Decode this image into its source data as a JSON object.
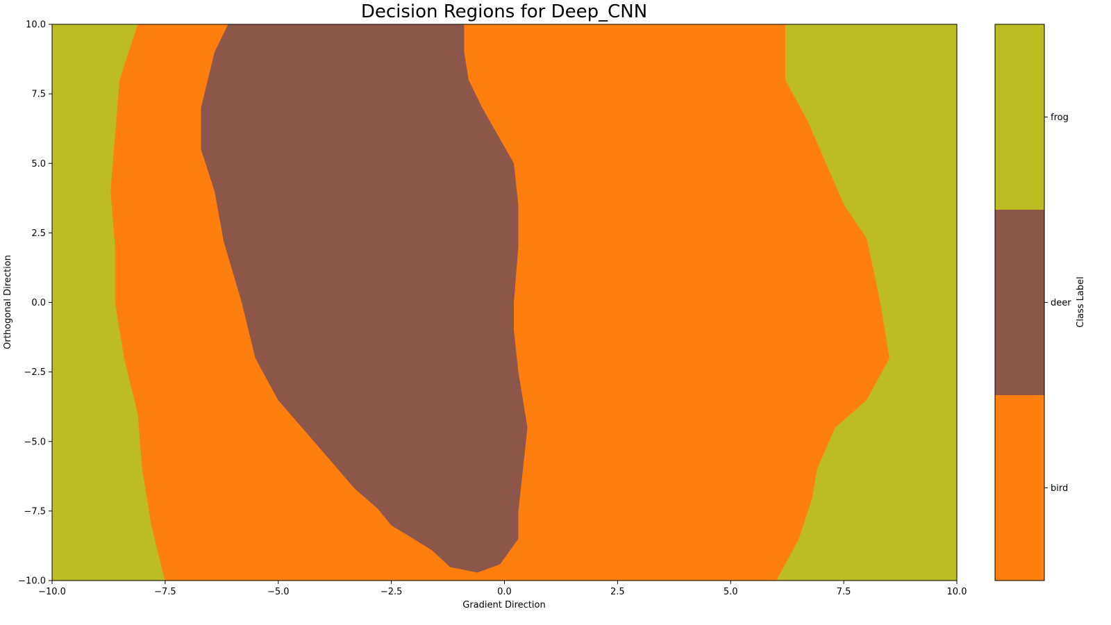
{
  "chart_data": {
    "type": "heatmap",
    "title": "Decision Regions for Deep_CNN",
    "xlabel": "Gradient Direction",
    "ylabel": "Orthogonal Direction",
    "xlim": [
      -10,
      10
    ],
    "ylim": [
      -10,
      10
    ],
    "x_ticks": [
      -10,
      -7.5,
      -5,
      -2.5,
      0,
      2.5,
      5,
      7.5,
      10
    ],
    "y_ticks": [
      -10,
      -7.5,
      -5,
      -2.5,
      0,
      2.5,
      5,
      7.5,
      10
    ],
    "x_tick_labels": [
      "−10.0",
      "−7.5",
      "−5.0",
      "−2.5",
      "0.0",
      "2.5",
      "5.0",
      "7.5",
      "10.0"
    ],
    "y_tick_labels": [
      "−10.0",
      "−7.5",
      "−5.0",
      "−2.5",
      "0.0",
      "2.5",
      "5.0",
      "7.5",
      "10.0"
    ],
    "grid": false,
    "classes": [
      {
        "name": "frog",
        "color": "#bcbd22"
      },
      {
        "name": "bird",
        "color": "#ff7f0e"
      },
      {
        "name": "deer",
        "color": "#8c564b"
      }
    ],
    "background_class": "frog",
    "regions": [
      {
        "class": "bird",
        "boundary": [
          [
            -8.1,
            10
          ],
          [
            -6.1,
            10
          ],
          [
            -6.4,
            9
          ],
          [
            -6.7,
            7
          ],
          [
            -6.7,
            5.5
          ],
          [
            -6.4,
            4
          ],
          [
            -6.2,
            2.2
          ],
          [
            -5.8,
            0
          ],
          [
            -5.5,
            -2
          ],
          [
            -5.0,
            -3.5
          ],
          [
            -4.2,
            -5
          ],
          [
            -3.3,
            -6.7
          ],
          [
            -2.8,
            -7.4
          ],
          [
            -2.5,
            -8
          ],
          [
            -1.6,
            -8.9
          ],
          [
            -1.2,
            -9.5
          ],
          [
            -0.6,
            -9.7
          ],
          [
            -0.1,
            -9.4
          ],
          [
            0.3,
            -8.5
          ],
          [
            0.3,
            -7.5
          ],
          [
            0.4,
            -6
          ],
          [
            0.5,
            -4.5
          ],
          [
            0.3,
            -2.5
          ],
          [
            0.2,
            -1
          ],
          [
            0.2,
            0
          ],
          [
            0.3,
            2
          ],
          [
            0.3,
            3.5
          ],
          [
            0.2,
            5
          ],
          [
            -0.5,
            7
          ],
          [
            -0.8,
            8
          ],
          [
            -0.9,
            9
          ],
          [
            -0.9,
            10
          ],
          [
            6.2,
            10
          ],
          [
            6.2,
            8
          ],
          [
            6.7,
            6.5
          ],
          [
            7.5,
            3.5
          ],
          [
            8.0,
            2.3
          ],
          [
            8.3,
            0
          ],
          [
            8.4,
            -1
          ],
          [
            8.5,
            -2
          ],
          [
            8.0,
            -3.5
          ],
          [
            7.3,
            -4.5
          ],
          [
            6.9,
            -6
          ],
          [
            6.8,
            -7
          ],
          [
            6.5,
            -8.5
          ],
          [
            6.0,
            -10
          ],
          [
            -7.5,
            -10
          ],
          [
            -7.8,
            -8
          ],
          [
            -8.0,
            -6
          ],
          [
            -8.1,
            -4
          ],
          [
            -8.4,
            -2
          ],
          [
            -8.6,
            0
          ],
          [
            -8.6,
            2
          ],
          [
            -8.7,
            4
          ],
          [
            -8.6,
            6
          ],
          [
            -8.5,
            8
          ]
        ]
      },
      {
        "class": "deer",
        "boundary": [
          [
            -6.1,
            10
          ],
          [
            -0.9,
            10
          ],
          [
            -0.9,
            9
          ],
          [
            -0.8,
            8
          ],
          [
            -0.5,
            7
          ],
          [
            0.2,
            5
          ],
          [
            0.3,
            3.5
          ],
          [
            0.3,
            2
          ],
          [
            0.2,
            0
          ],
          [
            0.2,
            -1
          ],
          [
            0.3,
            -2.5
          ],
          [
            0.5,
            -4.5
          ],
          [
            0.4,
            -6
          ],
          [
            0.3,
            -7.5
          ],
          [
            0.3,
            -8.5
          ],
          [
            -0.1,
            -9.4
          ],
          [
            -0.6,
            -9.7
          ],
          [
            -1.2,
            -9.5
          ],
          [
            -1.6,
            -8.9
          ],
          [
            -2.5,
            -8
          ],
          [
            -2.8,
            -7.4
          ],
          [
            -3.3,
            -6.7
          ],
          [
            -4.2,
            -5
          ],
          [
            -5.0,
            -3.5
          ],
          [
            -5.5,
            -2
          ],
          [
            -5.8,
            0
          ],
          [
            -6.2,
            2.2
          ],
          [
            -6.4,
            4
          ],
          [
            -6.7,
            5.5
          ],
          [
            -6.7,
            7
          ],
          [
            -6.4,
            9
          ]
        ]
      }
    ],
    "colorbar": {
      "label": "Class Label",
      "ticks": [
        "bird",
        "deer",
        "frog"
      ],
      "colors": [
        "#ff7f0e",
        "#8c564b",
        "#bcbd22"
      ]
    }
  }
}
